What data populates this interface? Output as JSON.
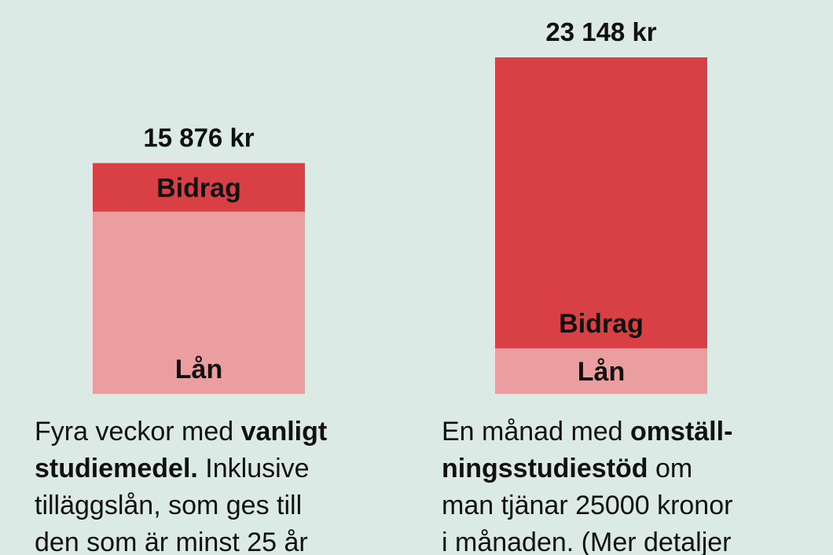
{
  "chart_data": {
    "type": "stacked_bar",
    "series": [
      {
        "name": "Lån",
        "color": "#eb9ea0",
        "values": [
          12528,
          3130
        ]
      },
      {
        "name": "Bidrag",
        "color": "#d94045",
        "values": [
          3348,
          20018
        ]
      }
    ],
    "totals": [
      15876,
      23148
    ],
    "total_labels": [
      "15 876 kr",
      "23 148 kr"
    ],
    "descriptions": [
      [
        [
          {
            "text": "Fyra veckor med ",
            "bold": false
          },
          {
            "text": "vanligt",
            "bold": true
          }
        ],
        [
          {
            "text": "studiemedel.",
            "bold": true
          },
          {
            "text": " Inklusive",
            "bold": false
          }
        ],
        [
          {
            "text": "tilläggslån, som ges till",
            "bold": false
          }
        ],
        [
          {
            "text": "den som är minst 25 år",
            "bold": false
          }
        ]
      ],
      [
        [
          {
            "text": "En månad med ",
            "bold": false
          },
          {
            "text": "omställ-",
            "bold": true
          }
        ],
        [
          {
            "text": "ningsstudiestöd",
            "bold": true
          },
          {
            "text": " om",
            "bold": false
          }
        ],
        [
          {
            "text": "man tjänar 25000 kronor",
            "bold": false
          }
        ],
        [
          {
            "text": "i månaden. (Mer detaljer",
            "bold": false
          }
        ]
      ]
    ]
  }
}
